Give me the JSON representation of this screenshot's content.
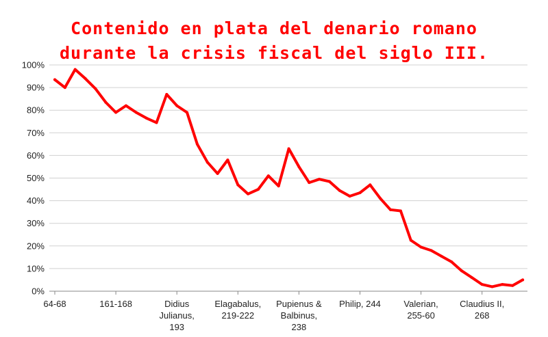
{
  "title_lines": [
    "Contenido en plata del denario romano",
    "durante la crisis fiscal del siglo III."
  ],
  "colors": {
    "line": "#ff0000",
    "title": "#ff0000",
    "grid": "#d0d0d0",
    "axis": "#888888"
  },
  "chart_data": {
    "type": "line",
    "title": "Contenido en plata del denario romano durante la crisis fiscal del siglo III.",
    "xlabel": "",
    "ylabel": "",
    "ylim": [
      0,
      100
    ],
    "y_ticks": [
      0,
      10,
      20,
      30,
      40,
      50,
      60,
      70,
      80,
      90,
      100
    ],
    "y_tick_labels": [
      "0%",
      "10%",
      "20%",
      "30%",
      "40%",
      "50%",
      "60%",
      "70%",
      "80%",
      "90%",
      "100%"
    ],
    "grid": true,
    "x_tick_labels": [
      {
        "index": 0,
        "lines": [
          "64-68"
        ]
      },
      {
        "index": 6,
        "lines": [
          "161-168"
        ]
      },
      {
        "index": 12,
        "lines": [
          "Didius",
          "Julianus,",
          "193"
        ]
      },
      {
        "index": 18,
        "lines": [
          "Elagabalus,",
          "219-222"
        ]
      },
      {
        "index": 24,
        "lines": [
          "Pupienus &",
          "Balbinus,",
          "238"
        ]
      },
      {
        "index": 30,
        "lines": [
          "Philip, 244"
        ]
      },
      {
        "index": 36,
        "lines": [
          "Valerian,",
          "255-60"
        ]
      },
      {
        "index": 42,
        "lines": [
          "Claudius II,",
          "268"
        ]
      }
    ],
    "series": [
      {
        "values": [
          93.5,
          90,
          98,
          94,
          89.5,
          83.5,
          79,
          82,
          79,
          76.5,
          74.5,
          87,
          82,
          79,
          65,
          57,
          52,
          58,
          47,
          43,
          45,
          51,
          46.5,
          63,
          55,
          48,
          49.5,
          48.5,
          44.5,
          42,
          43.5,
          47,
          41,
          36,
          35.5,
          22.5,
          19.5,
          18,
          15.5,
          13,
          9,
          6,
          3,
          2,
          3,
          2.5,
          5
        ]
      }
    ]
  }
}
